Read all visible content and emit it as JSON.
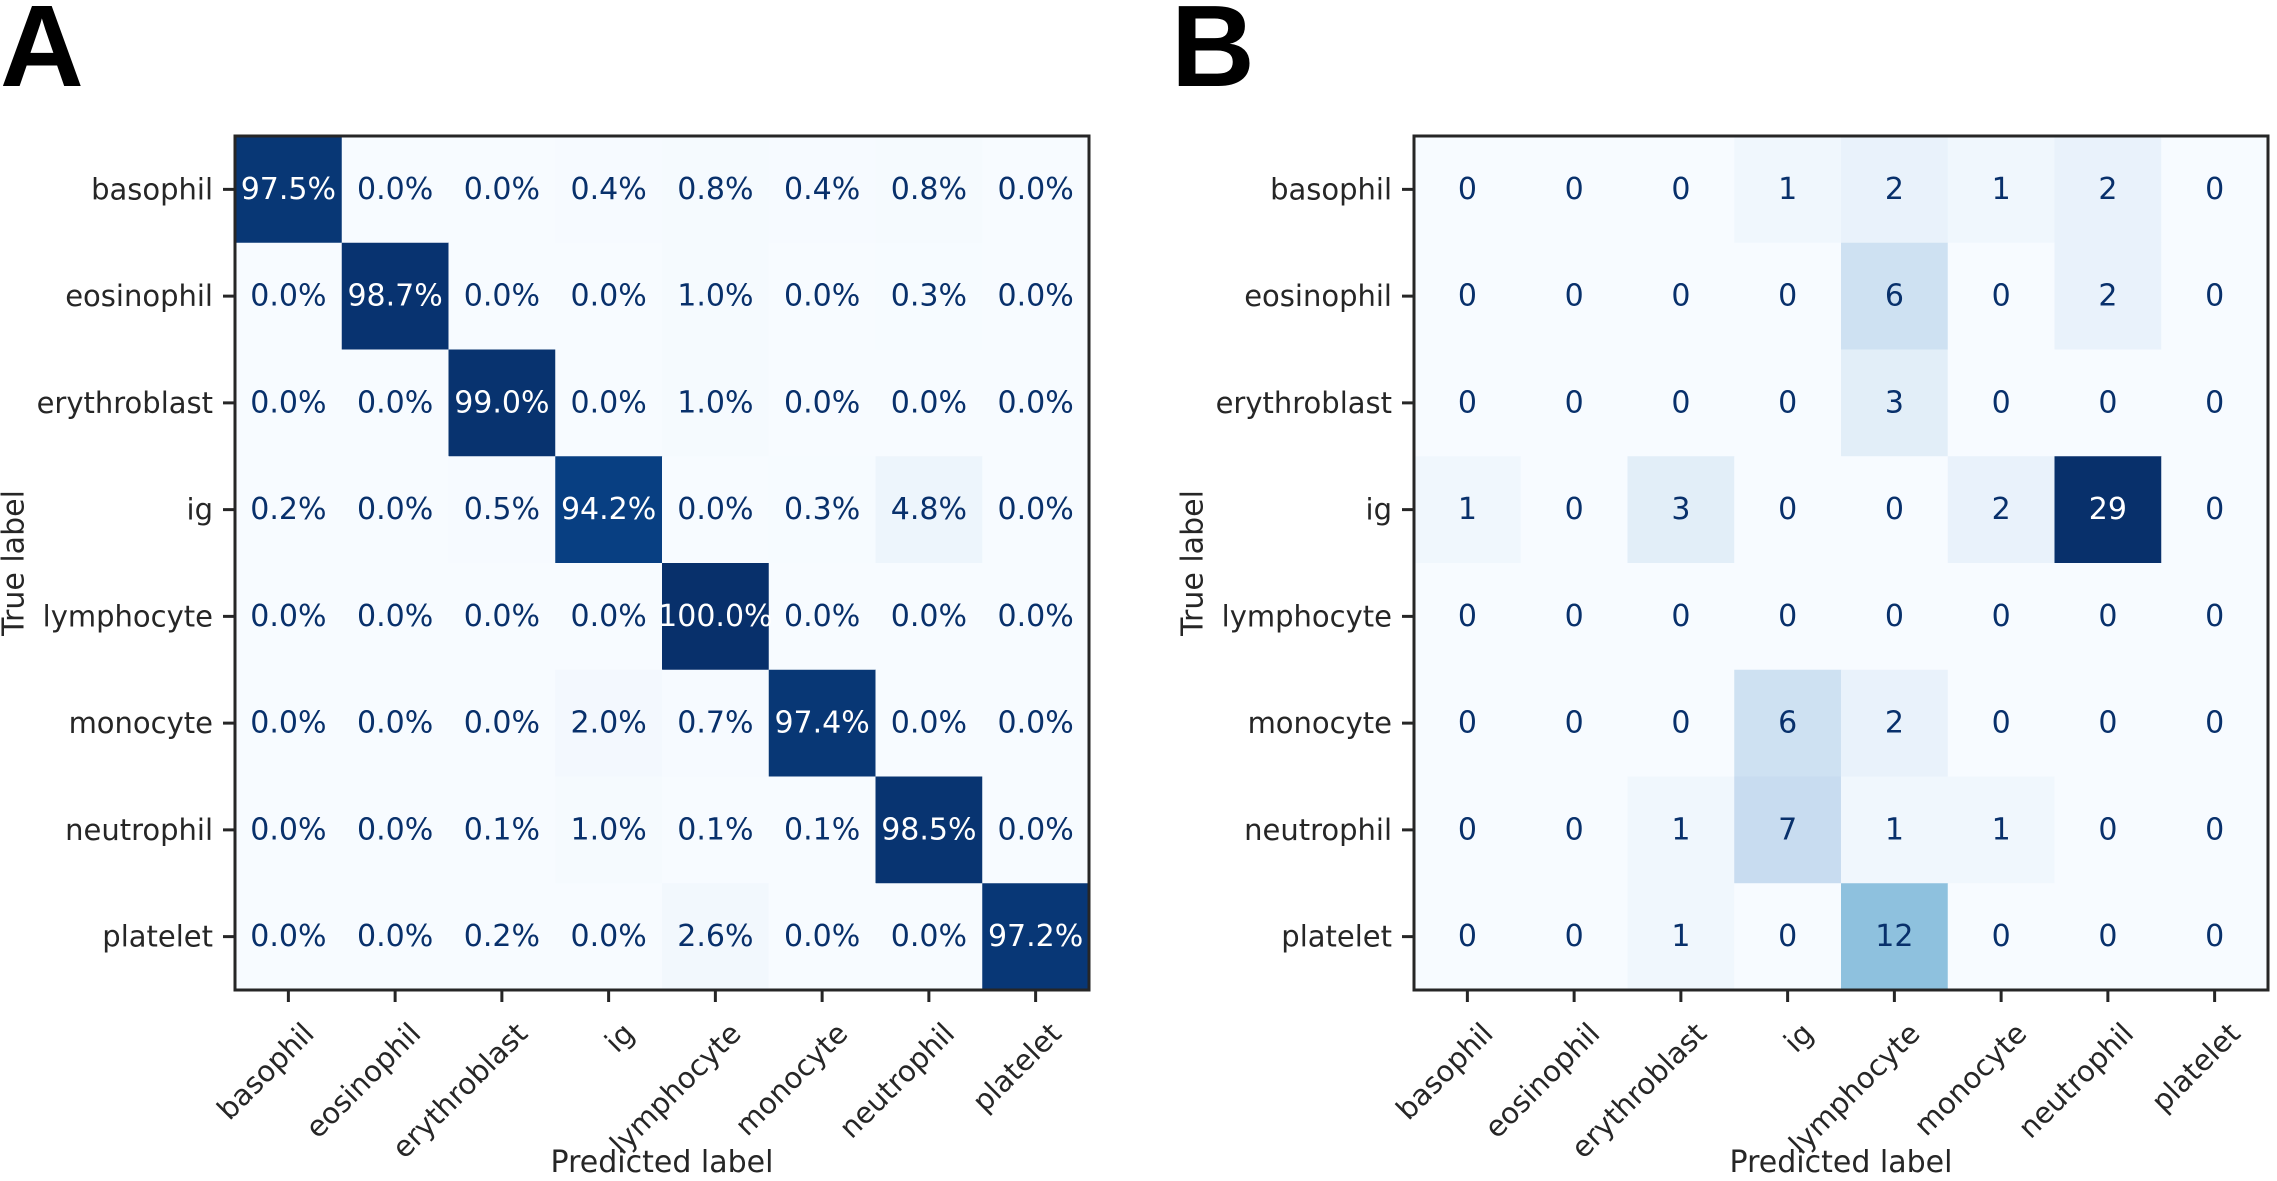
{
  "chart_data": [
    {
      "panel": "A",
      "type": "heatmap",
      "format": "percent",
      "xlabel": "Predicted label",
      "ylabel": "True label",
      "categories": [
        "basophil",
        "eosinophil",
        "erythroblast",
        "ig",
        "lymphocyte",
        "monocyte",
        "neutrophil",
        "platelet"
      ],
      "values": [
        [
          97.5,
          0.0,
          0.0,
          0.4,
          0.8,
          0.4,
          0.8,
          0.0
        ],
        [
          0.0,
          98.7,
          0.0,
          0.0,
          1.0,
          0.0,
          0.3,
          0.0
        ],
        [
          0.0,
          0.0,
          99.0,
          0.0,
          1.0,
          0.0,
          0.0,
          0.0
        ],
        [
          0.2,
          0.0,
          0.5,
          94.2,
          0.0,
          0.3,
          4.8,
          0.0
        ],
        [
          0.0,
          0.0,
          0.0,
          0.0,
          100.0,
          0.0,
          0.0,
          0.0
        ],
        [
          0.0,
          0.0,
          0.0,
          2.0,
          0.7,
          97.4,
          0.0,
          0.0
        ],
        [
          0.0,
          0.0,
          0.1,
          1.0,
          0.1,
          0.1,
          98.5,
          0.0
        ],
        [
          0.0,
          0.0,
          0.2,
          0.0,
          2.6,
          0.0,
          0.0,
          97.2
        ]
      ],
      "colormap": "Blues",
      "vmin": 0,
      "vmax": 100
    },
    {
      "panel": "B",
      "type": "heatmap",
      "format": "integer",
      "xlabel": "Predicted label",
      "ylabel": "True label",
      "categories": [
        "basophil",
        "eosinophil",
        "erythroblast",
        "ig",
        "lymphocyte",
        "monocyte",
        "neutrophil",
        "platelet"
      ],
      "values": [
        [
          0,
          0,
          0,
          1,
          2,
          1,
          2,
          0
        ],
        [
          0,
          0,
          0,
          0,
          6,
          0,
          2,
          0
        ],
        [
          0,
          0,
          0,
          0,
          3,
          0,
          0,
          0
        ],
        [
          1,
          0,
          3,
          0,
          0,
          2,
          29,
          0
        ],
        [
          0,
          0,
          0,
          0,
          0,
          0,
          0,
          0
        ],
        [
          0,
          0,
          0,
          6,
          2,
          0,
          0,
          0
        ],
        [
          0,
          0,
          1,
          7,
          1,
          1,
          0,
          0
        ],
        [
          0,
          0,
          1,
          0,
          12,
          0,
          0,
          0
        ]
      ],
      "colormap": "Blues",
      "vmin": 0,
      "vmax": 29
    }
  ],
  "colors": {
    "blues_ramp": [
      "#f7fbff",
      "#deebf7",
      "#c6dbef",
      "#9ecae1",
      "#6baed6",
      "#4292c6",
      "#2171b5",
      "#08519c",
      "#08306b"
    ],
    "dark_text": "#08306b",
    "light_text": "#ffffff",
    "frame": "#262626"
  }
}
